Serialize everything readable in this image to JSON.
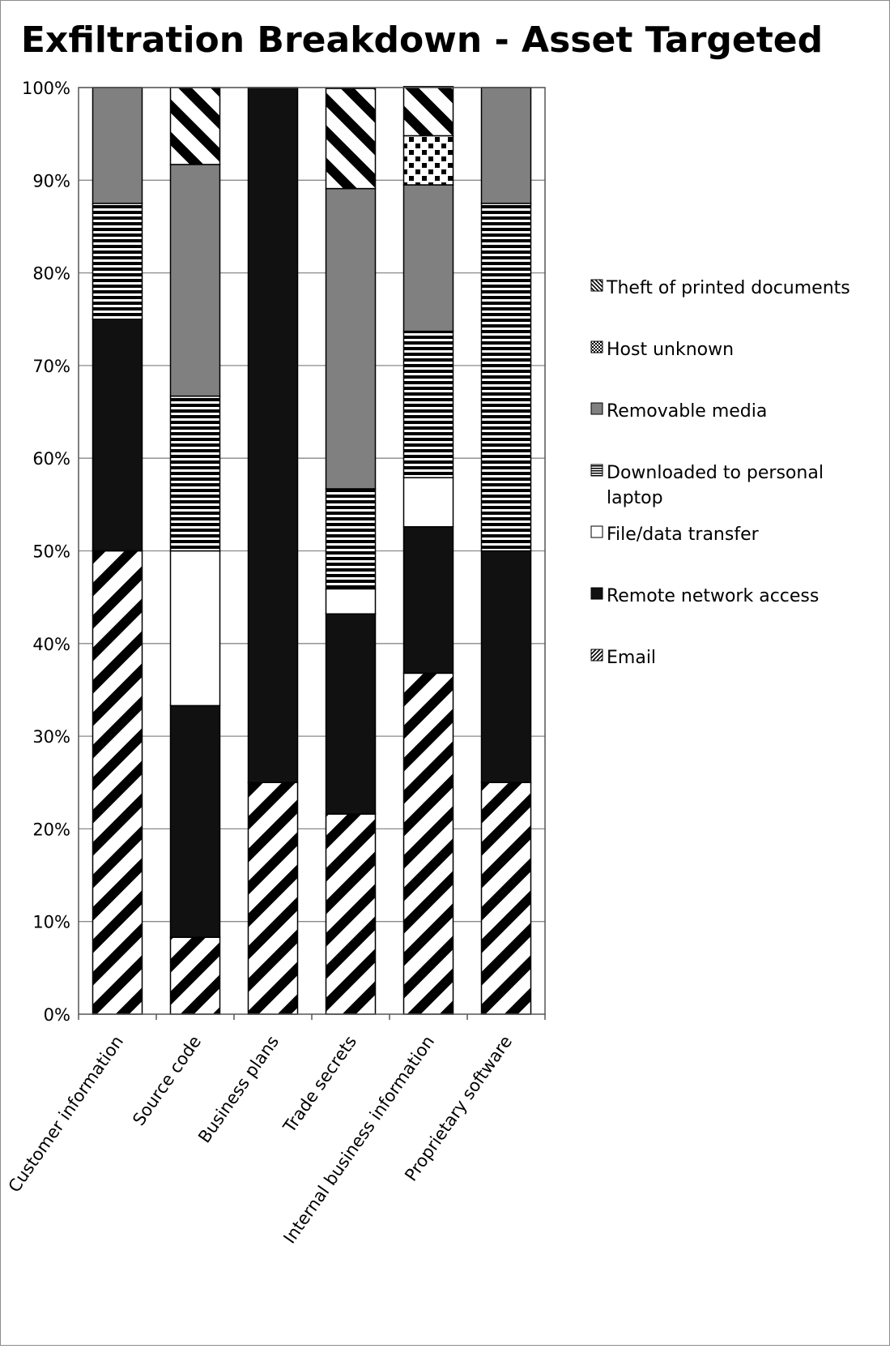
{
  "chart_data": {
    "type": "bar",
    "stacked": true,
    "percent": true,
    "title": "Exfiltration Breakdown - Asset Targeted",
    "xlabel": "",
    "ylabel": "",
    "ylim": [
      0,
      100
    ],
    "y_ticks": [
      "0%",
      "10%",
      "20%",
      "30%",
      "40%",
      "50%",
      "60%",
      "70%",
      "80%",
      "90%",
      "100%"
    ],
    "grid": true,
    "legend_position": "right",
    "categories": [
      "Customer information",
      "Source code",
      "Business plans",
      "Trade secrets",
      "Internal business information",
      "Proprietary software"
    ],
    "series": [
      {
        "name": "Email",
        "pattern": "diagonal-stripes",
        "color": "#000000",
        "values": [
          50,
          8.3,
          25,
          21.6,
          36.8,
          25
        ]
      },
      {
        "name": "Remote network access",
        "pattern": "solid",
        "color": "#111111",
        "values": [
          25,
          25,
          75,
          21.6,
          15.8,
          25
        ]
      },
      {
        "name": "File/data transfer",
        "pattern": "solid",
        "color": "#ffffff",
        "values": [
          0,
          16.7,
          0,
          2.7,
          5.3,
          0
        ]
      },
      {
        "name": "Downloaded to personal laptop",
        "pattern": "horizontal-stripes",
        "color": "#000000",
        "values": [
          12.5,
          16.7,
          0,
          10.8,
          15.8,
          37.5
        ]
      },
      {
        "name": "Removable media",
        "pattern": "solid",
        "color": "#808080",
        "values": [
          12.5,
          25,
          0,
          32.4,
          15.8,
          12.5
        ]
      },
      {
        "name": "Host unknown",
        "pattern": "checker-dots",
        "color": "#000000",
        "values": [
          0,
          0,
          0,
          0,
          5.3,
          0
        ]
      },
      {
        "name": "Theft of printed documents",
        "pattern": "back-diagonal-stripes",
        "color": "#000000",
        "values": [
          0,
          8.3,
          0,
          10.8,
          5.3,
          0
        ]
      }
    ]
  }
}
